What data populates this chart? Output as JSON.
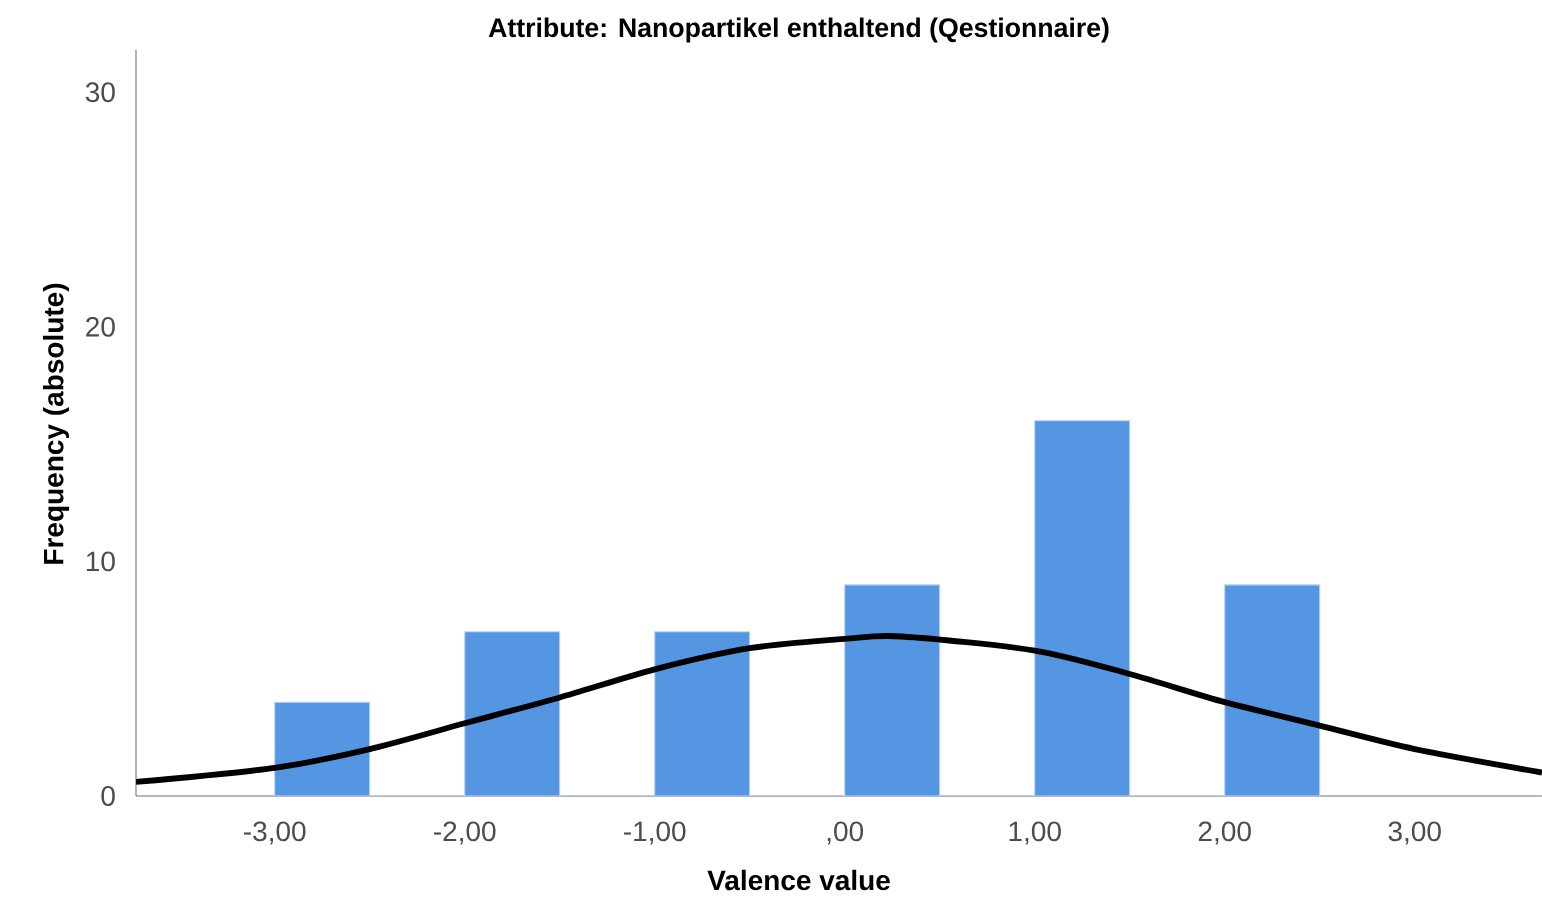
{
  "chart_data": {
    "type": "histogram",
    "title": "Attribute: Nanopartikel enthaltend (Qestionnaire)",
    "xlabel": "Valence value",
    "ylabel": "Frequency (absolute)",
    "bins": [
      -3,
      -2.5,
      -2,
      -1.5,
      -1,
      -0.5,
      0,
      0.5,
      1,
      1.5,
      2,
      2.5
    ],
    "values": [
      4,
      0,
      7,
      0,
      7,
      0,
      9,
      0,
      16,
      0,
      9
    ],
    "color": "#5596e3",
    "series": [
      {
        "type": "line",
        "color": "#000000",
        "x": [
          -3.73,
          -3.0,
          -2.5,
          -2.0,
          -1.5,
          -1.0,
          -0.5,
          0.0,
          0.3,
          1.0,
          1.5,
          2.0,
          2.5,
          3.0,
          3.67
        ],
        "values": [
          0.6,
          1.2,
          2.0,
          3.1,
          4.2,
          5.4,
          6.3,
          6.7,
          6.8,
          6.2,
          5.2,
          4.0,
          3.0,
          2.0,
          1.0
        ]
      }
    ],
    "xlim": [
      -3.73,
      3.67
    ],
    "ylim": [
      0,
      31.8
    ],
    "xticks": [
      {
        "value": -3,
        "label": "-3,00"
      },
      {
        "value": -2,
        "label": "-2,00"
      },
      {
        "value": -1,
        "label": "-1,00"
      },
      {
        "value": 0,
        "label": ",00"
      },
      {
        "value": 1,
        "label": "1,00"
      },
      {
        "value": 2,
        "label": "2,00"
      },
      {
        "value": 3,
        "label": "3,00"
      }
    ],
    "yticks": [
      0,
      10,
      20,
      30
    ]
  }
}
